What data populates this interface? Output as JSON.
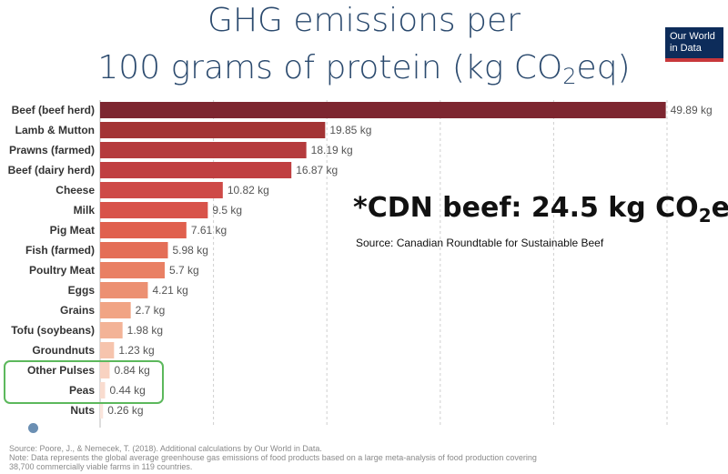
{
  "title_line1": "GHG emissions per",
  "title_line2_main": "100 grams of protein (kg CO",
  "title_line2_sub": "2",
  "title_line2_end": "eq)",
  "logo": {
    "line1": "Our World",
    "line2": "in Data"
  },
  "callout": {
    "main": "*CDN beef: 24.5 kg CO",
    "sub": "2",
    "end": "eq",
    "source": "Source: Canadian Roundtable for Sustainable Beef"
  },
  "source_lines": [
    "Source: Poore, J., & Nemecek, T. (2018). Additional calculations by Our World in Data.",
    "Note: Data represents the global average greenhouse gas emissions of food products based on a large meta-analysis of food production covering",
    "38,700 commercially viable farms in 119 countries."
  ],
  "chart_data": {
    "type": "bar",
    "orientation": "horizontal",
    "unit": "kg",
    "categories": [
      "Beef (beef herd)",
      "Lamb & Mutton",
      "Prawns (farmed)",
      "Beef (dairy herd)",
      "Cheese",
      "Milk",
      "Pig Meat",
      "Fish (farmed)",
      "Poultry Meat",
      "Eggs",
      "Grains",
      "Tofu (soybeans)",
      "Groundnuts",
      "Other Pulses",
      "Peas",
      "Nuts"
    ],
    "values": [
      49.89,
      19.85,
      18.19,
      16.87,
      10.82,
      9.5,
      7.61,
      5.98,
      5.7,
      4.21,
      2.7,
      1.98,
      1.23,
      0.84,
      0.44,
      0.26
    ],
    "value_labels": [
      "49.89 kg",
      "19.85 kg",
      "18.19 kg",
      "16.87 kg",
      "10.82 kg",
      "9.5 kg",
      "7.61 kg",
      "5.98 kg",
      "5.7 kg",
      "4.21 kg",
      "2.7 kg",
      "1.98 kg",
      "1.23 kg",
      "0.84 kg",
      "0.44 kg",
      "0.26 kg"
    ],
    "colors": [
      "#7d2630",
      "#a33435",
      "#b53b3d",
      "#c03f41",
      "#ce4a47",
      "#d8534a",
      "#e0604e",
      "#e46e57",
      "#e98064",
      "#ec9072",
      "#f1a484",
      "#f3b397",
      "#f6c4ad",
      "#f8d2c1",
      "#f9dccf",
      "#fae5dc"
    ],
    "highlighted": [
      "Other Pulses",
      "Peas"
    ],
    "xlim": [
      0,
      50
    ],
    "grid": true
  }
}
